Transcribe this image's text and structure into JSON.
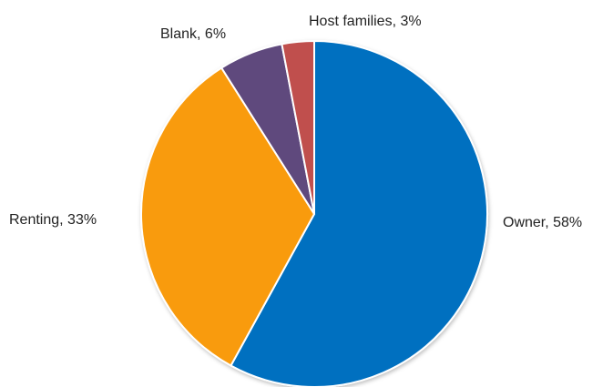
{
  "chart_data": {
    "type": "pie",
    "title": "",
    "slices": [
      {
        "name": "Owner",
        "value": 58,
        "label": "Owner, 58%",
        "color": "#0070C0"
      },
      {
        "name": "Renting",
        "value": 33,
        "label": "Renting, 33%",
        "color": "#F99B0C"
      },
      {
        "name": "Blank",
        "value": 6,
        "label": "Blank, 6%",
        "color": "#5E4A7D"
      },
      {
        "name": "Host families",
        "value": 3,
        "label": "Host families, 3%",
        "color": "#C0504D"
      }
    ],
    "legend": "none",
    "data_labels": "outside"
  }
}
